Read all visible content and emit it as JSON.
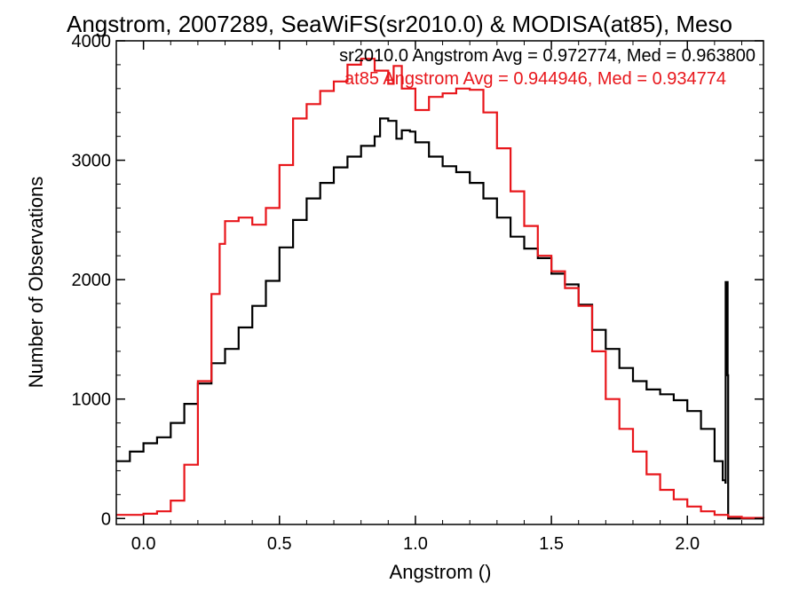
{
  "chart_data": {
    "type": "line",
    "title": "Angstrom, 2007289, SeaWiFS(sr2010.0) & MODISA(at85), Meso",
    "xlabel": "Angstrom ()",
    "ylabel": "Number of Observations",
    "xlim": [
      -0.1,
      2.28
    ],
    "ylim": [
      -50,
      4000
    ],
    "xticks": [
      "0.0",
      "0.5",
      "1.0",
      "1.5",
      "2.0"
    ],
    "yticks": [
      "0",
      "1000",
      "2000",
      "3000",
      "4000"
    ],
    "grid": false,
    "colors": {
      "sr2010": "#000000",
      "at85": "#e8161b"
    },
    "annotations": [
      {
        "text": "sr2010.0 Angstrom Avg = 0.972774, Med = 0.963800",
        "color": "#000000"
      },
      {
        "text": "at85 Angstrom Avg = 0.944946, Med = 0.934774",
        "color": "#e8161b"
      }
    ],
    "series": [
      {
        "id": "sr2010",
        "x": [
          -0.1,
          -0.05,
          0.0,
          0.05,
          0.1,
          0.15,
          0.2,
          0.25,
          0.3,
          0.35,
          0.4,
          0.45,
          0.5,
          0.55,
          0.6,
          0.65,
          0.7,
          0.75,
          0.8,
          0.85,
          0.87,
          0.9,
          0.93,
          0.95,
          0.98,
          1.0,
          1.05,
          1.1,
          1.15,
          1.2,
          1.25,
          1.3,
          1.35,
          1.4,
          1.45,
          1.5,
          1.55,
          1.6,
          1.65,
          1.7,
          1.75,
          1.8,
          1.85,
          1.9,
          1.95,
          2.0,
          2.05,
          2.1,
          2.13,
          2.14,
          2.141,
          2.145,
          2.148,
          2.15,
          2.16,
          2.2,
          2.28
        ],
        "y": [
          480,
          560,
          630,
          680,
          800,
          960,
          1130,
          1300,
          1420,
          1600,
          1780,
          1990,
          2270,
          2500,
          2680,
          2810,
          2940,
          3030,
          3120,
          3200,
          3350,
          3330,
          3180,
          3250,
          3240,
          3150,
          3030,
          2950,
          2900,
          2810,
          2680,
          2520,
          2360,
          2260,
          2180,
          2050,
          1960,
          1790,
          1580,
          1420,
          1260,
          1150,
          1080,
          1040,
          990,
          900,
          750,
          480,
          320,
          300,
          1980,
          1980,
          1200,
          0,
          0,
          0,
          0
        ]
      },
      {
        "id": "at85",
        "x": [
          -0.1,
          -0.05,
          0.0,
          0.05,
          0.1,
          0.15,
          0.2,
          0.25,
          0.28,
          0.3,
          0.35,
          0.4,
          0.45,
          0.5,
          0.55,
          0.6,
          0.65,
          0.7,
          0.75,
          0.8,
          0.85,
          0.9,
          0.92,
          0.95,
          1.0,
          1.05,
          1.1,
          1.15,
          1.2,
          1.25,
          1.3,
          1.35,
          1.4,
          1.45,
          1.5,
          1.55,
          1.6,
          1.65,
          1.7,
          1.75,
          1.8,
          1.85,
          1.9,
          1.95,
          2.0,
          2.05,
          2.1,
          2.15,
          2.2,
          2.28
        ],
        "y": [
          30,
          30,
          40,
          60,
          150,
          450,
          1150,
          1880,
          2300,
          2490,
          2520,
          2460,
          2600,
          2960,
          3350,
          3470,
          3580,
          3660,
          3800,
          3850,
          3750,
          3640,
          3790,
          3600,
          3420,
          3530,
          3560,
          3600,
          3590,
          3400,
          3100,
          2740,
          2450,
          2200,
          2070,
          1930,
          1780,
          1400,
          1000,
          750,
          560,
          370,
          240,
          160,
          100,
          60,
          30,
          15,
          5,
          0
        ]
      }
    ]
  }
}
